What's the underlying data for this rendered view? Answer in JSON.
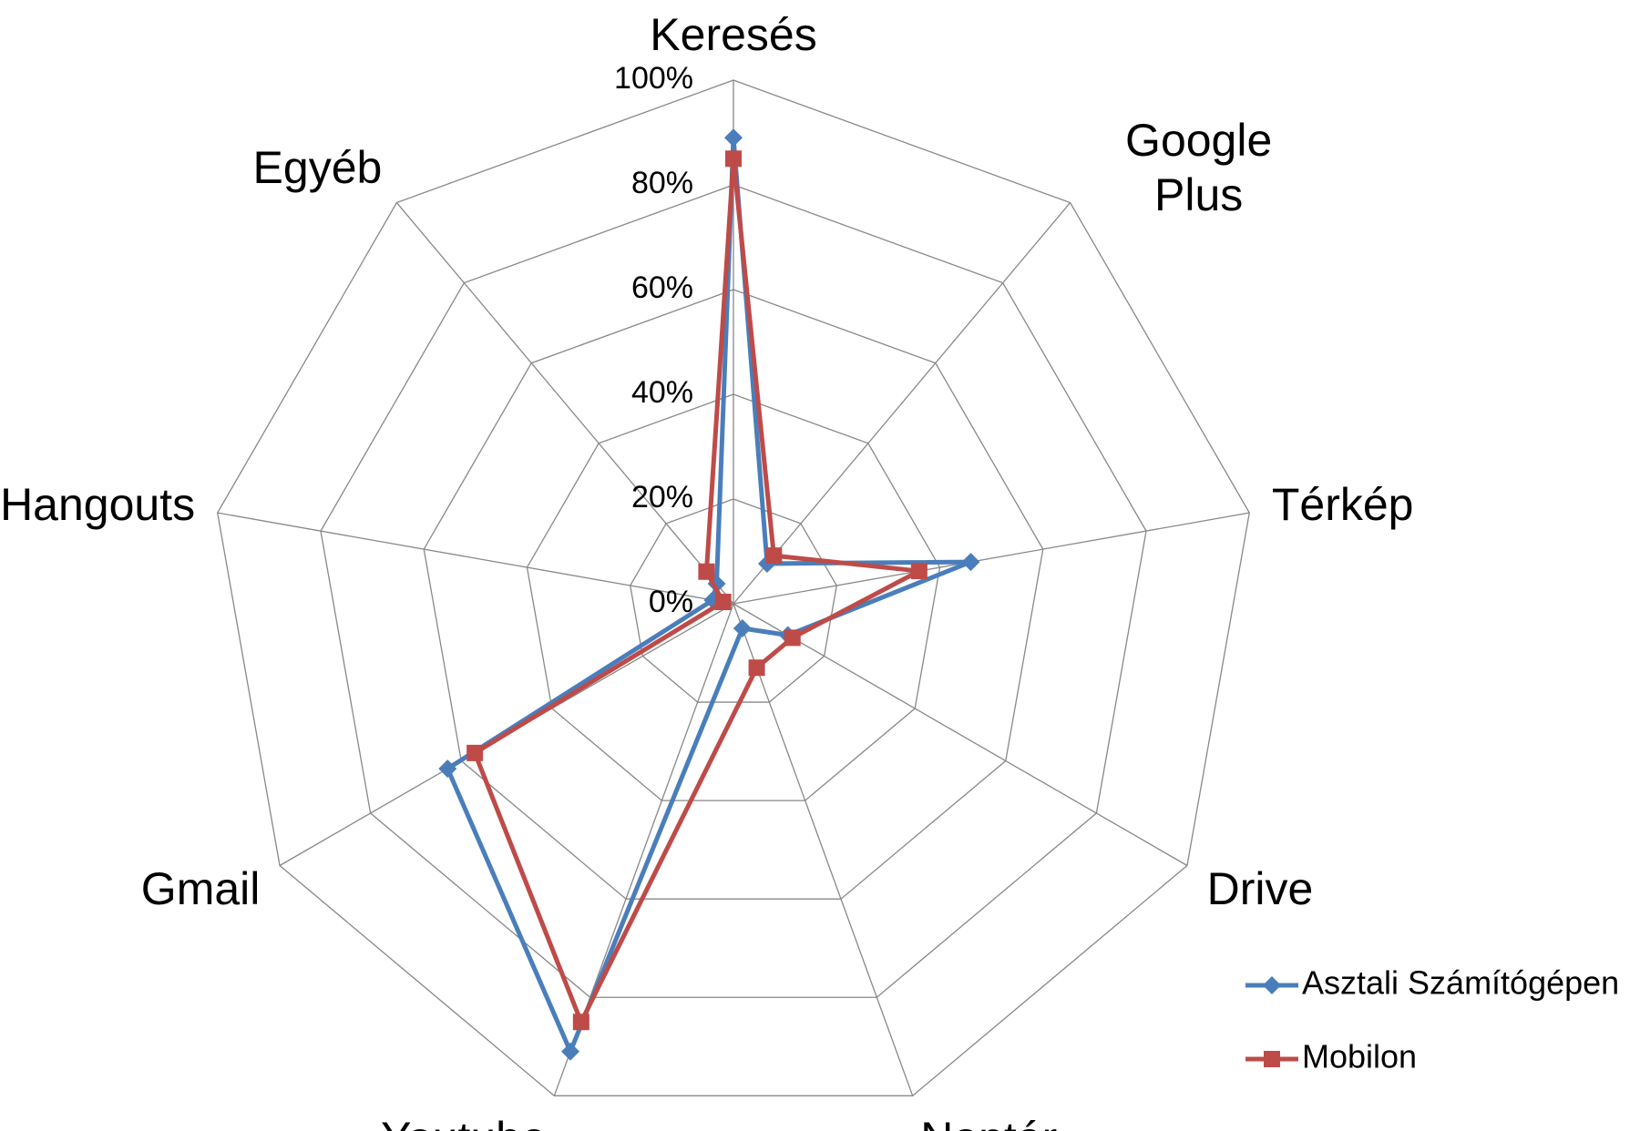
{
  "chart_data": {
    "type": "radar",
    "categories": [
      "Keresés",
      "Google Plus",
      "Térkép",
      "Drive",
      "Naptár",
      "Youtube",
      "Gmail",
      "Hangouts",
      "Egyéb"
    ],
    "series": [
      {
        "name": "Asztali Számítógépen",
        "color": "#4a7ebb",
        "marker": "diamond",
        "values": [
          89,
          10,
          46,
          12,
          5,
          91,
          63,
          4,
          5
        ]
      },
      {
        "name": "Mobilon",
        "color": "#be4b48",
        "marker": "square",
        "values": [
          85,
          12,
          36,
          13,
          13,
          85,
          57,
          2,
          8
        ]
      }
    ],
    "rlim": [
      0,
      100
    ],
    "rticks": [
      {
        "value": 0,
        "label": "0%"
      },
      {
        "value": 20,
        "label": "20%"
      },
      {
        "value": 40,
        "label": "40%"
      },
      {
        "value": 60,
        "label": "60%"
      },
      {
        "value": 80,
        "label": "80%"
      },
      {
        "value": 100,
        "label": "100%"
      }
    ],
    "grid": true,
    "legend": "right"
  }
}
